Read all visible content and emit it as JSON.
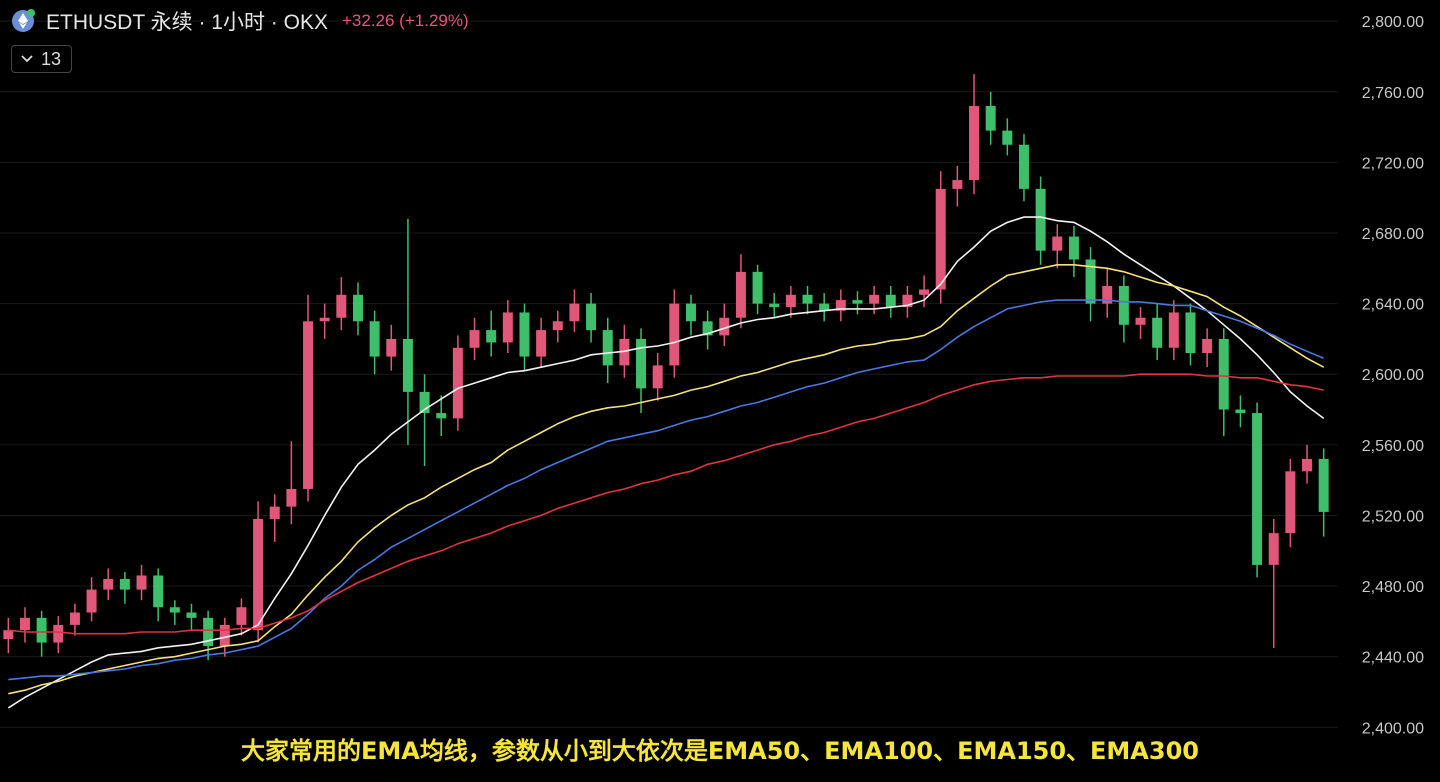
{
  "header": {
    "symbol": "ETHUSDT 永续 · 1小时 · OKX",
    "change": "+32.26 (+1.29%)",
    "indicator_count": "13"
  },
  "caption": "大家常用的EMA均线，参数从小到大依次是EMA50、EMA100、EMA150、EMA300",
  "chart_data": {
    "type": "candlestick",
    "up_color": "#e0577a",
    "down_color": "#3fbf6a",
    "open": [
      2450,
      2455,
      2462,
      2448,
      2458,
      2465,
      2478,
      2484,
      2478,
      2486,
      2468,
      2465,
      2462,
      2446,
      2458,
      2455,
      2518,
      2525,
      2535,
      2630,
      2632,
      2645,
      2630,
      2610,
      2620,
      2590,
      2578,
      2575,
      2615,
      2625,
      2618,
      2635,
      2610,
      2625,
      2630,
      2640,
      2625,
      2605,
      2620,
      2592,
      2605,
      2640,
      2630,
      2622,
      2632,
      2658,
      2640,
      2638,
      2645,
      2640,
      2636,
      2642,
      2640,
      2645,
      2638,
      2645,
      2648,
      2705,
      2710,
      2752,
      2738,
      2730,
      2705,
      2670,
      2678,
      2665,
      2640,
      2650,
      2628,
      2632,
      2615,
      2635,
      2612,
      2620,
      2580,
      2578,
      2492,
      2510,
      2545,
      2552
    ],
    "high": [
      2462,
      2468,
      2466,
      2463,
      2470,
      2485,
      2490,
      2488,
      2492,
      2490,
      2472,
      2470,
      2466,
      2462,
      2473,
      2528,
      2532,
      2562,
      2645,
      2640,
      2655,
      2652,
      2636,
      2628,
      2688,
      2600,
      2588,
      2622,
      2632,
      2636,
      2642,
      2640,
      2632,
      2636,
      2648,
      2646,
      2632,
      2628,
      2626,
      2612,
      2648,
      2645,
      2636,
      2640,
      2668,
      2662,
      2646,
      2650,
      2650,
      2646,
      2648,
      2647,
      2650,
      2650,
      2650,
      2656,
      2715,
      2718,
      2770,
      2760,
      2745,
      2736,
      2712,
      2685,
      2684,
      2672,
      2660,
      2656,
      2638,
      2640,
      2642,
      2640,
      2626,
      2626,
      2588,
      2584,
      2518,
      2552,
      2560,
      2558
    ],
    "low": [
      2442,
      2448,
      2440,
      2442,
      2452,
      2460,
      2472,
      2470,
      2472,
      2460,
      2458,
      2455,
      2438,
      2440,
      2452,
      2448,
      2505,
      2515,
      2528,
      2620,
      2625,
      2622,
      2600,
      2602,
      2560,
      2548,
      2565,
      2568,
      2608,
      2610,
      2612,
      2602,
      2604,
      2618,
      2624,
      2618,
      2595,
      2598,
      2578,
      2585,
      2598,
      2622,
      2614,
      2616,
      2626,
      2634,
      2632,
      2632,
      2634,
      2630,
      2630,
      2634,
      2634,
      2632,
      2632,
      2638,
      2640,
      2695,
      2702,
      2730,
      2724,
      2698,
      2662,
      2660,
      2655,
      2630,
      2632,
      2618,
      2620,
      2608,
      2608,
      2605,
      2604,
      2565,
      2570,
      2485,
      2445,
      2502,
      2538,
      2508
    ],
    "close": [
      2455,
      2462,
      2448,
      2458,
      2465,
      2478,
      2484,
      2478,
      2486,
      2468,
      2465,
      2462,
      2446,
      2458,
      2468,
      2518,
      2525,
      2535,
      2630,
      2632,
      2645,
      2630,
      2610,
      2620,
      2590,
      2578,
      2575,
      2615,
      2625,
      2618,
      2635,
      2610,
      2625,
      2630,
      2640,
      2625,
      2605,
      2620,
      2592,
      2605,
      2640,
      2630,
      2622,
      2632,
      2658,
      2640,
      2638,
      2645,
      2640,
      2636,
      2642,
      2640,
      2645,
      2638,
      2645,
      2648,
      2705,
      2710,
      2752,
      2738,
      2730,
      2705,
      2670,
      2678,
      2665,
      2640,
      2650,
      2628,
      2632,
      2615,
      2635,
      2612,
      2620,
      2580,
      2578,
      2492,
      2510,
      2545,
      2552,
      2522
    ],
    "series": [
      {
        "color": "#f2f2f2",
        "values": [
          2411,
          2417,
          2422,
          2427,
          2432,
          2437,
          2441,
          2442,
          2443,
          2445,
          2446,
          2447,
          2449,
          2451,
          2453,
          2458,
          2473,
          2487,
          2503,
          2520,
          2536,
          2549,
          2557,
          2566,
          2573,
          2580,
          2586,
          2592,
          2595,
          2598,
          2601,
          2602,
          2604,
          2606,
          2608,
          2611,
          2612,
          2613,
          2615,
          2616,
          2618,
          2621,
          2623,
          2626,
          2629,
          2631,
          2632,
          2634,
          2635,
          2636,
          2637,
          2637,
          2637,
          2638,
          2639,
          2642,
          2651,
          2664,
          2672,
          2681,
          2686,
          2689,
          2689,
          2687,
          2686,
          2681,
          2675,
          2668,
          2662,
          2656,
          2650,
          2643,
          2636,
          2628,
          2620,
          2611,
          2601,
          2590,
          2582,
          2575
        ]
      },
      {
        "color": "#f3e27c",
        "values": [
          2419,
          2421,
          2424,
          2426,
          2429,
          2431,
          2433,
          2435,
          2437,
          2439,
          2440,
          2442,
          2444,
          2446,
          2447,
          2449,
          2457,
          2464,
          2475,
          2485,
          2494,
          2505,
          2513,
          2520,
          2526,
          2530,
          2536,
          2541,
          2546,
          2550,
          2557,
          2562,
          2567,
          2572,
          2576,
          2579,
          2581,
          2582,
          2584,
          2586,
          2588,
          2591,
          2593,
          2596,
          2599,
          2601,
          2604,
          2607,
          2609,
          2611,
          2614,
          2616,
          2617,
          2619,
          2620,
          2622,
          2627,
          2636,
          2643,
          2650,
          2656,
          2658,
          2660,
          2662,
          2662,
          2661,
          2660,
          2658,
          2655,
          2652,
          2650,
          2647,
          2644,
          2638,
          2633,
          2627,
          2621,
          2615,
          2609,
          2604
        ]
      },
      {
        "color": "#4a78e0",
        "values": [
          2427,
          2428,
          2429,
          2429,
          2430,
          2431,
          2432,
          2433,
          2435,
          2436,
          2438,
          2439,
          2441,
          2442,
          2444,
          2446,
          2451,
          2456,
          2464,
          2473,
          2480,
          2489,
          2495,
          2502,
          2507,
          2512,
          2517,
          2522,
          2527,
          2532,
          2537,
          2541,
          2546,
          2550,
          2554,
          2558,
          2562,
          2564,
          2566,
          2568,
          2571,
          2574,
          2576,
          2579,
          2582,
          2584,
          2587,
          2590,
          2593,
          2595,
          2598,
          2601,
          2603,
          2605,
          2607,
          2608,
          2614,
          2621,
          2627,
          2632,
          2637,
          2639,
          2641,
          2642,
          2642,
          2642,
          2642,
          2641,
          2641,
          2640,
          2639,
          2639,
          2636,
          2633,
          2630,
          2626,
          2622,
          2617,
          2613,
          2609
        ]
      },
      {
        "color": "#e0343f",
        "values": [
          2455,
          2454,
          2454,
          2454,
          2453,
          2453,
          2453,
          2453,
          2454,
          2454,
          2454,
          2455,
          2455,
          2455,
          2456,
          2456,
          2459,
          2462,
          2466,
          2472,
          2477,
          2482,
          2486,
          2490,
          2494,
          2497,
          2500,
          2504,
          2507,
          2510,
          2514,
          2517,
          2520,
          2524,
          2527,
          2530,
          2533,
          2535,
          2538,
          2540,
          2543,
          2545,
          2549,
          2551,
          2554,
          2557,
          2560,
          2562,
          2565,
          2567,
          2570,
          2573,
          2575,
          2578,
          2581,
          2584,
          2588,
          2591,
          2594,
          2596,
          2597,
          2598,
          2598,
          2599,
          2599,
          2599,
          2599,
          2599,
          2600,
          2600,
          2600,
          2600,
          2599,
          2599,
          2598,
          2598,
          2596,
          2594,
          2593,
          2591
        ]
      }
    ],
    "ylim": [
      2369,
      2812
    ],
    "yticks": [
      {
        "value": 2400,
        "label": "2,400.00"
      },
      {
        "value": 2440,
        "label": "2,440.00"
      },
      {
        "value": 2480,
        "label": "2,480.00"
      },
      {
        "value": 2520,
        "label": "2,520.00"
      },
      {
        "value": 2560,
        "label": "2,560.00"
      },
      {
        "value": 2600,
        "label": "2,600.00"
      },
      {
        "value": 2640,
        "label": "2,640.00"
      },
      {
        "value": 2680,
        "label": "2,680.00"
      },
      {
        "value": 2720,
        "label": "2,720.00"
      },
      {
        "value": 2760,
        "label": "2,760.00"
      },
      {
        "value": 2800,
        "label": "2,800.00"
      }
    ],
    "grid": true
  }
}
